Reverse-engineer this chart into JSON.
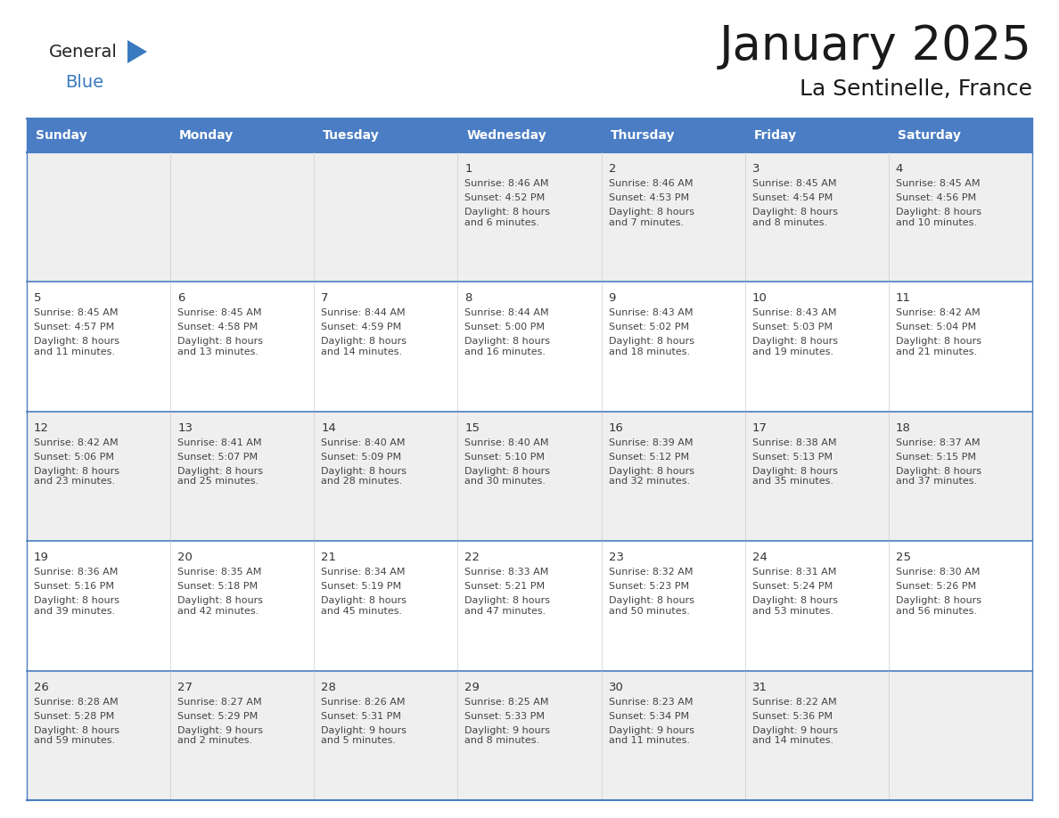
{
  "title": "January 2025",
  "subtitle": "La Sentinelle, France",
  "days_of_week": [
    "Sunday",
    "Monday",
    "Tuesday",
    "Wednesday",
    "Thursday",
    "Friday",
    "Saturday"
  ],
  "header_bg": "#4a7dc4",
  "header_text": "#FFFFFF",
  "cell_bg_even": "#EFEFEF",
  "cell_bg_odd": "#FFFFFF",
  "border_color": "#4a7dc4",
  "text_color": "#444444",
  "day_num_color": "#333333",
  "logo_general_color": "#222222",
  "logo_blue_color": "#3a7abf",
  "title_color": "#1a1a1a",
  "calendar_data": [
    [
      null,
      null,
      null,
      {
        "day": "1",
        "sunrise": "8:46 AM",
        "sunset": "4:52 PM",
        "daylight": "8 hours\nand 6 minutes."
      },
      {
        "day": "2",
        "sunrise": "8:46 AM",
        "sunset": "4:53 PM",
        "daylight": "8 hours\nand 7 minutes."
      },
      {
        "day": "3",
        "sunrise": "8:45 AM",
        "sunset": "4:54 PM",
        "daylight": "8 hours\nand 8 minutes."
      },
      {
        "day": "4",
        "sunrise": "8:45 AM",
        "sunset": "4:56 PM",
        "daylight": "8 hours\nand 10 minutes."
      }
    ],
    [
      {
        "day": "5",
        "sunrise": "8:45 AM",
        "sunset": "4:57 PM",
        "daylight": "8 hours\nand 11 minutes."
      },
      {
        "day": "6",
        "sunrise": "8:45 AM",
        "sunset": "4:58 PM",
        "daylight": "8 hours\nand 13 minutes."
      },
      {
        "day": "7",
        "sunrise": "8:44 AM",
        "sunset": "4:59 PM",
        "daylight": "8 hours\nand 14 minutes."
      },
      {
        "day": "8",
        "sunrise": "8:44 AM",
        "sunset": "5:00 PM",
        "daylight": "8 hours\nand 16 minutes."
      },
      {
        "day": "9",
        "sunrise": "8:43 AM",
        "sunset": "5:02 PM",
        "daylight": "8 hours\nand 18 minutes."
      },
      {
        "day": "10",
        "sunrise": "8:43 AM",
        "sunset": "5:03 PM",
        "daylight": "8 hours\nand 19 minutes."
      },
      {
        "day": "11",
        "sunrise": "8:42 AM",
        "sunset": "5:04 PM",
        "daylight": "8 hours\nand 21 minutes."
      }
    ],
    [
      {
        "day": "12",
        "sunrise": "8:42 AM",
        "sunset": "5:06 PM",
        "daylight": "8 hours\nand 23 minutes."
      },
      {
        "day": "13",
        "sunrise": "8:41 AM",
        "sunset": "5:07 PM",
        "daylight": "8 hours\nand 25 minutes."
      },
      {
        "day": "14",
        "sunrise": "8:40 AM",
        "sunset": "5:09 PM",
        "daylight": "8 hours\nand 28 minutes."
      },
      {
        "day": "15",
        "sunrise": "8:40 AM",
        "sunset": "5:10 PM",
        "daylight": "8 hours\nand 30 minutes."
      },
      {
        "day": "16",
        "sunrise": "8:39 AM",
        "sunset": "5:12 PM",
        "daylight": "8 hours\nand 32 minutes."
      },
      {
        "day": "17",
        "sunrise": "8:38 AM",
        "sunset": "5:13 PM",
        "daylight": "8 hours\nand 35 minutes."
      },
      {
        "day": "18",
        "sunrise": "8:37 AM",
        "sunset": "5:15 PM",
        "daylight": "8 hours\nand 37 minutes."
      }
    ],
    [
      {
        "day": "19",
        "sunrise": "8:36 AM",
        "sunset": "5:16 PM",
        "daylight": "8 hours\nand 39 minutes."
      },
      {
        "day": "20",
        "sunrise": "8:35 AM",
        "sunset": "5:18 PM",
        "daylight": "8 hours\nand 42 minutes."
      },
      {
        "day": "21",
        "sunrise": "8:34 AM",
        "sunset": "5:19 PM",
        "daylight": "8 hours\nand 45 minutes."
      },
      {
        "day": "22",
        "sunrise": "8:33 AM",
        "sunset": "5:21 PM",
        "daylight": "8 hours\nand 47 minutes."
      },
      {
        "day": "23",
        "sunrise": "8:32 AM",
        "sunset": "5:23 PM",
        "daylight": "8 hours\nand 50 minutes."
      },
      {
        "day": "24",
        "sunrise": "8:31 AM",
        "sunset": "5:24 PM",
        "daylight": "8 hours\nand 53 minutes."
      },
      {
        "day": "25",
        "sunrise": "8:30 AM",
        "sunset": "5:26 PM",
        "daylight": "8 hours\nand 56 minutes."
      }
    ],
    [
      {
        "day": "26",
        "sunrise": "8:28 AM",
        "sunset": "5:28 PM",
        "daylight": "8 hours\nand 59 minutes."
      },
      {
        "day": "27",
        "sunrise": "8:27 AM",
        "sunset": "5:29 PM",
        "daylight": "9 hours\nand 2 minutes."
      },
      {
        "day": "28",
        "sunrise": "8:26 AM",
        "sunset": "5:31 PM",
        "daylight": "9 hours\nand 5 minutes."
      },
      {
        "day": "29",
        "sunrise": "8:25 AM",
        "sunset": "5:33 PM",
        "daylight": "9 hours\nand 8 minutes."
      },
      {
        "day": "30",
        "sunrise": "8:23 AM",
        "sunset": "5:34 PM",
        "daylight": "9 hours\nand 11 minutes."
      },
      {
        "day": "31",
        "sunrise": "8:22 AM",
        "sunset": "5:36 PM",
        "daylight": "9 hours\nand 14 minutes."
      },
      null
    ]
  ]
}
